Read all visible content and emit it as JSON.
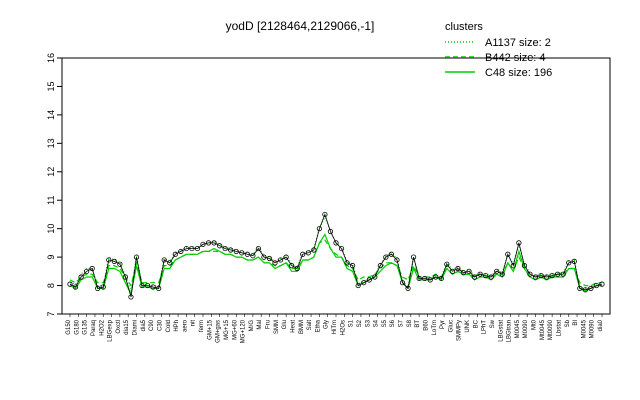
{
  "chart_data": {
    "type": "line",
    "title": "yodD [2128464,2129066,-1]",
    "xlabel": "",
    "ylabel": "",
    "ylim": [
      7,
      16
    ],
    "yticks": [
      7,
      8,
      9,
      10,
      11,
      12,
      13,
      14,
      15,
      16
    ],
    "grid": false,
    "legend": {
      "title": "clusters",
      "position": "top-right",
      "entries": [
        {
          "label": "A1137 size: 2",
          "style": "dotted"
        },
        {
          "label": "B442 size: 4",
          "style": "dashed"
        },
        {
          "label": "C48 size: 196",
          "style": "solid"
        }
      ]
    },
    "x_tick_labels": [
      "G150",
      "G180",
      "G135",
      "Paraq",
      "H2O2",
      "LBGexp",
      "Oxctl",
      "dia15",
      "Diami",
      "dia5",
      "C90",
      "C30",
      "Cold",
      "HPh",
      "aero",
      "nit",
      "ferm",
      "GM+15",
      "GM+gas",
      "MG+15",
      "MG+60",
      "MG+120",
      "M/G",
      "Mal",
      "Fru",
      "SMM",
      "Glu",
      "Heat",
      "BMM",
      "Salt",
      "Etha",
      "Gly",
      "HiTm",
      "H2Os",
      "S1",
      "S2",
      "S3",
      "S4",
      "S5",
      "S6",
      "S7",
      "S8",
      "BT",
      "B60",
      "LoTm",
      "Pyr",
      "Gluc",
      "SMMPy",
      "UNK",
      "BC",
      "LPhT",
      "Sw",
      "LBGstat",
      "LBGtran",
      "M0045",
      "M0090",
      "Mt0",
      "Mt0045",
      "Mt0090",
      "Lbstat",
      "Sb",
      "BI",
      "M0045",
      "M0090",
      "dia0"
    ],
    "series": [
      {
        "name": "C48",
        "marker": "point",
        "values": [
          8.05,
          7.95,
          8.3,
          8.5,
          8.6,
          7.9,
          7.95,
          8.9,
          8.85,
          8.75,
          8.3,
          7.6,
          9.0,
          8.0,
          8.0,
          7.95,
          7.9,
          8.9,
          8.8,
          9.1,
          9.2,
          9.3,
          9.3,
          9.3,
          9.45,
          9.5,
          9.5,
          9.4,
          9.3,
          9.25,
          9.2,
          9.15,
          9.1,
          9.05,
          9.3,
          9.0,
          8.95,
          8.8,
          8.9,
          9.0,
          8.7,
          8.6,
          9.1,
          9.15,
          9.25,
          10.0,
          10.5,
          9.9,
          9.5,
          9.3,
          8.8,
          8.7,
          8.0,
          8.1,
          8.2,
          8.3,
          8.7,
          9.0,
          9.1,
          8.9,
          8.1,
          7.9,
          9.0,
          8.25,
          8.25,
          8.2,
          8.3,
          8.25,
          8.75,
          8.5,
          8.6,
          8.45,
          8.5,
          8.3,
          8.4,
          8.35,
          8.3,
          8.5,
          8.4,
          9.1,
          8.7,
          9.5,
          8.7,
          8.4,
          8.3,
          8.35,
          8.3,
          8.35,
          8.4,
          8.4,
          8.8,
          8.85,
          7.9,
          7.85,
          7.9,
          8.0,
          8.05
        ]
      }
    ],
    "cluster_lines": [
      {
        "name": "A1137",
        "style": "dotted",
        "values": [
          8.1,
          8.05,
          8.4,
          8.6,
          8.6,
          8.0,
          8.0,
          9.0,
          8.9,
          8.8,
          8.35,
          7.8,
          9.05,
          8.05,
          8.05,
          8.0,
          8.0,
          8.95,
          8.85,
          9.15,
          9.25,
          9.35,
          9.35,
          9.35,
          9.45,
          9.5,
          9.55,
          9.45,
          9.35,
          9.3,
          9.25,
          9.2,
          9.15,
          9.1,
          9.35,
          9.05,
          9.0,
          8.85,
          8.95,
          9.05,
          8.75,
          8.65,
          9.15,
          9.2,
          9.3,
          10.0,
          10.4,
          9.9,
          9.5,
          9.35,
          8.85,
          8.75,
          8.05,
          8.15,
          8.25,
          8.35,
          8.75,
          9.05,
          9.15,
          8.95,
          8.15,
          7.95,
          9.0,
          8.3,
          8.3,
          8.25,
          8.35,
          8.3,
          8.8,
          8.55,
          8.65,
          8.5,
          8.55,
          8.35,
          8.45,
          8.4,
          8.35,
          8.55,
          8.45,
          9.1,
          8.75,
          9.45,
          8.75,
          8.45,
          8.35,
          8.4,
          8.35,
          8.4,
          8.45,
          8.45,
          8.85,
          8.9,
          7.95,
          7.9,
          7.95,
          8.05,
          8.1
        ]
      },
      {
        "name": "B442",
        "style": "dashed",
        "values": [
          8.2,
          8.1,
          8.3,
          8.4,
          8.4,
          8.1,
          8.1,
          8.7,
          8.7,
          8.6,
          8.3,
          8.0,
          8.8,
          8.1,
          8.1,
          8.1,
          8.1,
          8.7,
          8.7,
          8.9,
          9.0,
          9.1,
          9.1,
          9.1,
          9.2,
          9.2,
          9.2,
          9.2,
          9.1,
          9.1,
          9.0,
          9.0,
          8.9,
          8.9,
          9.0,
          8.8,
          8.8,
          8.7,
          8.7,
          8.8,
          8.6,
          8.6,
          8.9,
          8.9,
          9.0,
          9.5,
          9.6,
          9.3,
          9.1,
          9.0,
          8.7,
          8.6,
          8.2,
          8.3,
          8.3,
          8.4,
          8.6,
          8.8,
          8.8,
          8.7,
          8.3,
          8.2,
          8.7,
          8.3,
          8.3,
          8.3,
          8.4,
          8.3,
          8.6,
          8.4,
          8.5,
          8.4,
          8.4,
          8.3,
          8.4,
          8.3,
          8.3,
          8.4,
          8.4,
          8.8,
          8.5,
          9.0,
          8.6,
          8.4,
          8.3,
          8.3,
          8.3,
          8.3,
          8.4,
          8.4,
          8.6,
          8.6,
          8.1,
          8.0,
          8.0,
          8.1,
          8.1
        ]
      },
      {
        "name": "C48",
        "style": "solid",
        "values": [
          8.0,
          7.9,
          8.2,
          8.3,
          8.3,
          7.9,
          7.9,
          8.6,
          8.6,
          8.5,
          8.1,
          7.7,
          8.7,
          7.95,
          7.95,
          7.9,
          7.9,
          8.6,
          8.6,
          8.9,
          9.0,
          9.1,
          9.1,
          9.1,
          9.2,
          9.2,
          9.3,
          9.2,
          9.1,
          9.1,
          9.0,
          9.0,
          8.9,
          8.9,
          9.0,
          8.8,
          8.8,
          8.6,
          8.7,
          8.8,
          8.5,
          8.5,
          8.9,
          8.9,
          9.0,
          9.5,
          9.8,
          9.3,
          9.0,
          9.0,
          8.6,
          8.5,
          8.0,
          8.1,
          8.2,
          8.3,
          8.5,
          8.7,
          8.8,
          8.7,
          8.1,
          7.9,
          8.6,
          8.2,
          8.2,
          8.2,
          8.3,
          8.2,
          8.6,
          8.4,
          8.5,
          8.4,
          8.4,
          8.2,
          8.3,
          8.3,
          8.2,
          8.4,
          8.3,
          8.8,
          8.5,
          9.2,
          8.6,
          8.3,
          8.2,
          8.3,
          8.2,
          8.3,
          8.3,
          8.3,
          8.6,
          8.6,
          7.9,
          7.8,
          7.9,
          8.0,
          8.0
        ]
      }
    ]
  }
}
